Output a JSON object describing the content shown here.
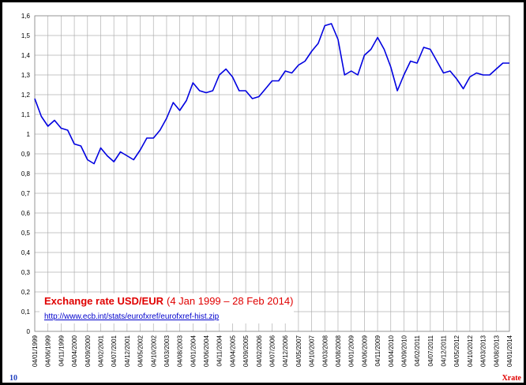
{
  "chart_data": {
    "type": "line",
    "title": "Exchange rate USD/EUR",
    "subtitle": "(4 Jan 1999 – 28 Feb 2014)",
    "source": "http://www.ecb.int/stats/eurofxref/eurofxref-hist.zip",
    "page_number": "10",
    "footer_label": "Xrate",
    "categories": [
      "04/01/1999",
      null,
      "04/06/1999",
      null,
      "04/11/1999",
      null,
      "04/04/2000",
      null,
      "04/09/2000",
      null,
      "04/02/2001",
      null,
      "04/07/2001",
      null,
      "04/12/2001",
      null,
      "04/05/2002",
      null,
      "04/10/2002",
      null,
      "04/03/2003",
      null,
      "04/08/2003",
      null,
      "04/01/2004",
      null,
      "04/06/2004",
      null,
      "04/11/2004",
      null,
      "04/04/2005",
      null,
      "04/09/2005",
      null,
      "04/02/2006",
      null,
      "04/07/2006",
      null,
      "04/12/2006",
      null,
      "04/05/2007",
      null,
      "04/10/2007",
      null,
      "04/03/2008",
      null,
      "04/08/2008",
      null,
      "04/01/2009",
      null,
      "04/06/2009",
      null,
      "04/11/2009",
      null,
      "04/04/2010",
      null,
      "04/09/2010",
      null,
      "04/02/2011",
      null,
      "04/07/2011",
      null,
      "04/12/2011",
      null,
      "04/05/2012",
      null,
      "04/10/2012",
      null,
      "04/03/2013",
      null,
      "04/08/2013",
      null,
      "04/01/2014"
    ],
    "values": [
      1.18,
      1.09,
      1.04,
      1.07,
      1.03,
      1.02,
      0.95,
      0.94,
      0.87,
      0.85,
      0.93,
      0.89,
      0.86,
      0.91,
      0.89,
      0.87,
      0.92,
      0.98,
      0.98,
      1.02,
      1.08,
      1.16,
      1.12,
      1.17,
      1.26,
      1.22,
      1.21,
      1.22,
      1.3,
      1.33,
      1.29,
      1.22,
      1.22,
      1.18,
      1.19,
      1.23,
      1.27,
      1.27,
      1.32,
      1.31,
      1.35,
      1.37,
      1.42,
      1.46,
      1.55,
      1.56,
      1.48,
      1.3,
      1.32,
      1.3,
      1.4,
      1.43,
      1.49,
      1.43,
      1.34,
      1.22,
      1.3,
      1.37,
      1.36,
      1.44,
      1.43,
      1.37,
      1.31,
      1.32,
      1.28,
      1.23,
      1.29,
      1.31,
      1.3,
      1.3,
      1.33,
      1.36,
      1.36
    ],
    "color": "#0000e0",
    "ylim": [
      0,
      1.6
    ],
    "yticks": [
      0,
      {
        "value": 0.1,
        "label": "0,1"
      },
      {
        "value": 0.2,
        "label": "0,2"
      },
      {
        "value": 0.3,
        "label": "0,3"
      },
      {
        "value": 0.4,
        "label": "0,4"
      },
      {
        "value": 0.5,
        "label": "0,5"
      },
      {
        "value": 0.6,
        "label": "0,6"
      },
      {
        "value": 0.7,
        "label": "0,7"
      },
      {
        "value": 0.8,
        "label": "0,8"
      },
      {
        "value": 0.9,
        "label": "0,9"
      },
      1,
      {
        "value": 1.1,
        "label": "1,1"
      },
      {
        "value": 1.2,
        "label": "1,2"
      },
      {
        "value": 1.3,
        "label": "1,3"
      },
      {
        "value": 1.4,
        "label": "1,4"
      },
      {
        "value": 1.5,
        "label": "1,5"
      },
      {
        "value": 1.6,
        "label": "1,6"
      }
    ],
    "grid": true
  }
}
